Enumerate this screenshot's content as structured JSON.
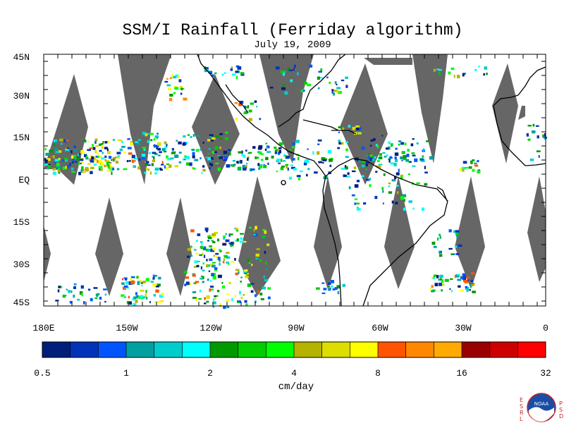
{
  "title": "SSM/I Rainfall (Ferriday algorithm)",
  "subtitle": "July 19, 2009",
  "lat_labels": [
    "45N",
    "30N",
    "15N",
    "EQ",
    "15S",
    "30S",
    "45S"
  ],
  "lon_labels": [
    "180E",
    "150W",
    "120W",
    "90W",
    "60W",
    "30W",
    "0"
  ],
  "units": "cm/day",
  "colorbar": {
    "labels": [
      "0.5",
      "1",
      "2",
      "4",
      "8",
      "16",
      "32"
    ],
    "colors": [
      "#001e7a",
      "#0033b8",
      "#0055ff",
      "#00a0a0",
      "#00cccc",
      "#00ffff",
      "#009900",
      "#00cc00",
      "#00ff00",
      "#b3b300",
      "#dddd00",
      "#ffff00",
      "#ff5500",
      "#ff8800",
      "#ffaa00",
      "#990000",
      "#cc0000",
      "#ff0000"
    ]
  },
  "map_colors": {
    "no_data": "#666666",
    "coast": "#000000",
    "frame": "#000000"
  },
  "logo": {
    "left_letters": [
      "E",
      "S",
      "R",
      "L"
    ],
    "right_letters": [
      "P",
      "S",
      "D"
    ],
    "badge": "NOAA"
  }
}
